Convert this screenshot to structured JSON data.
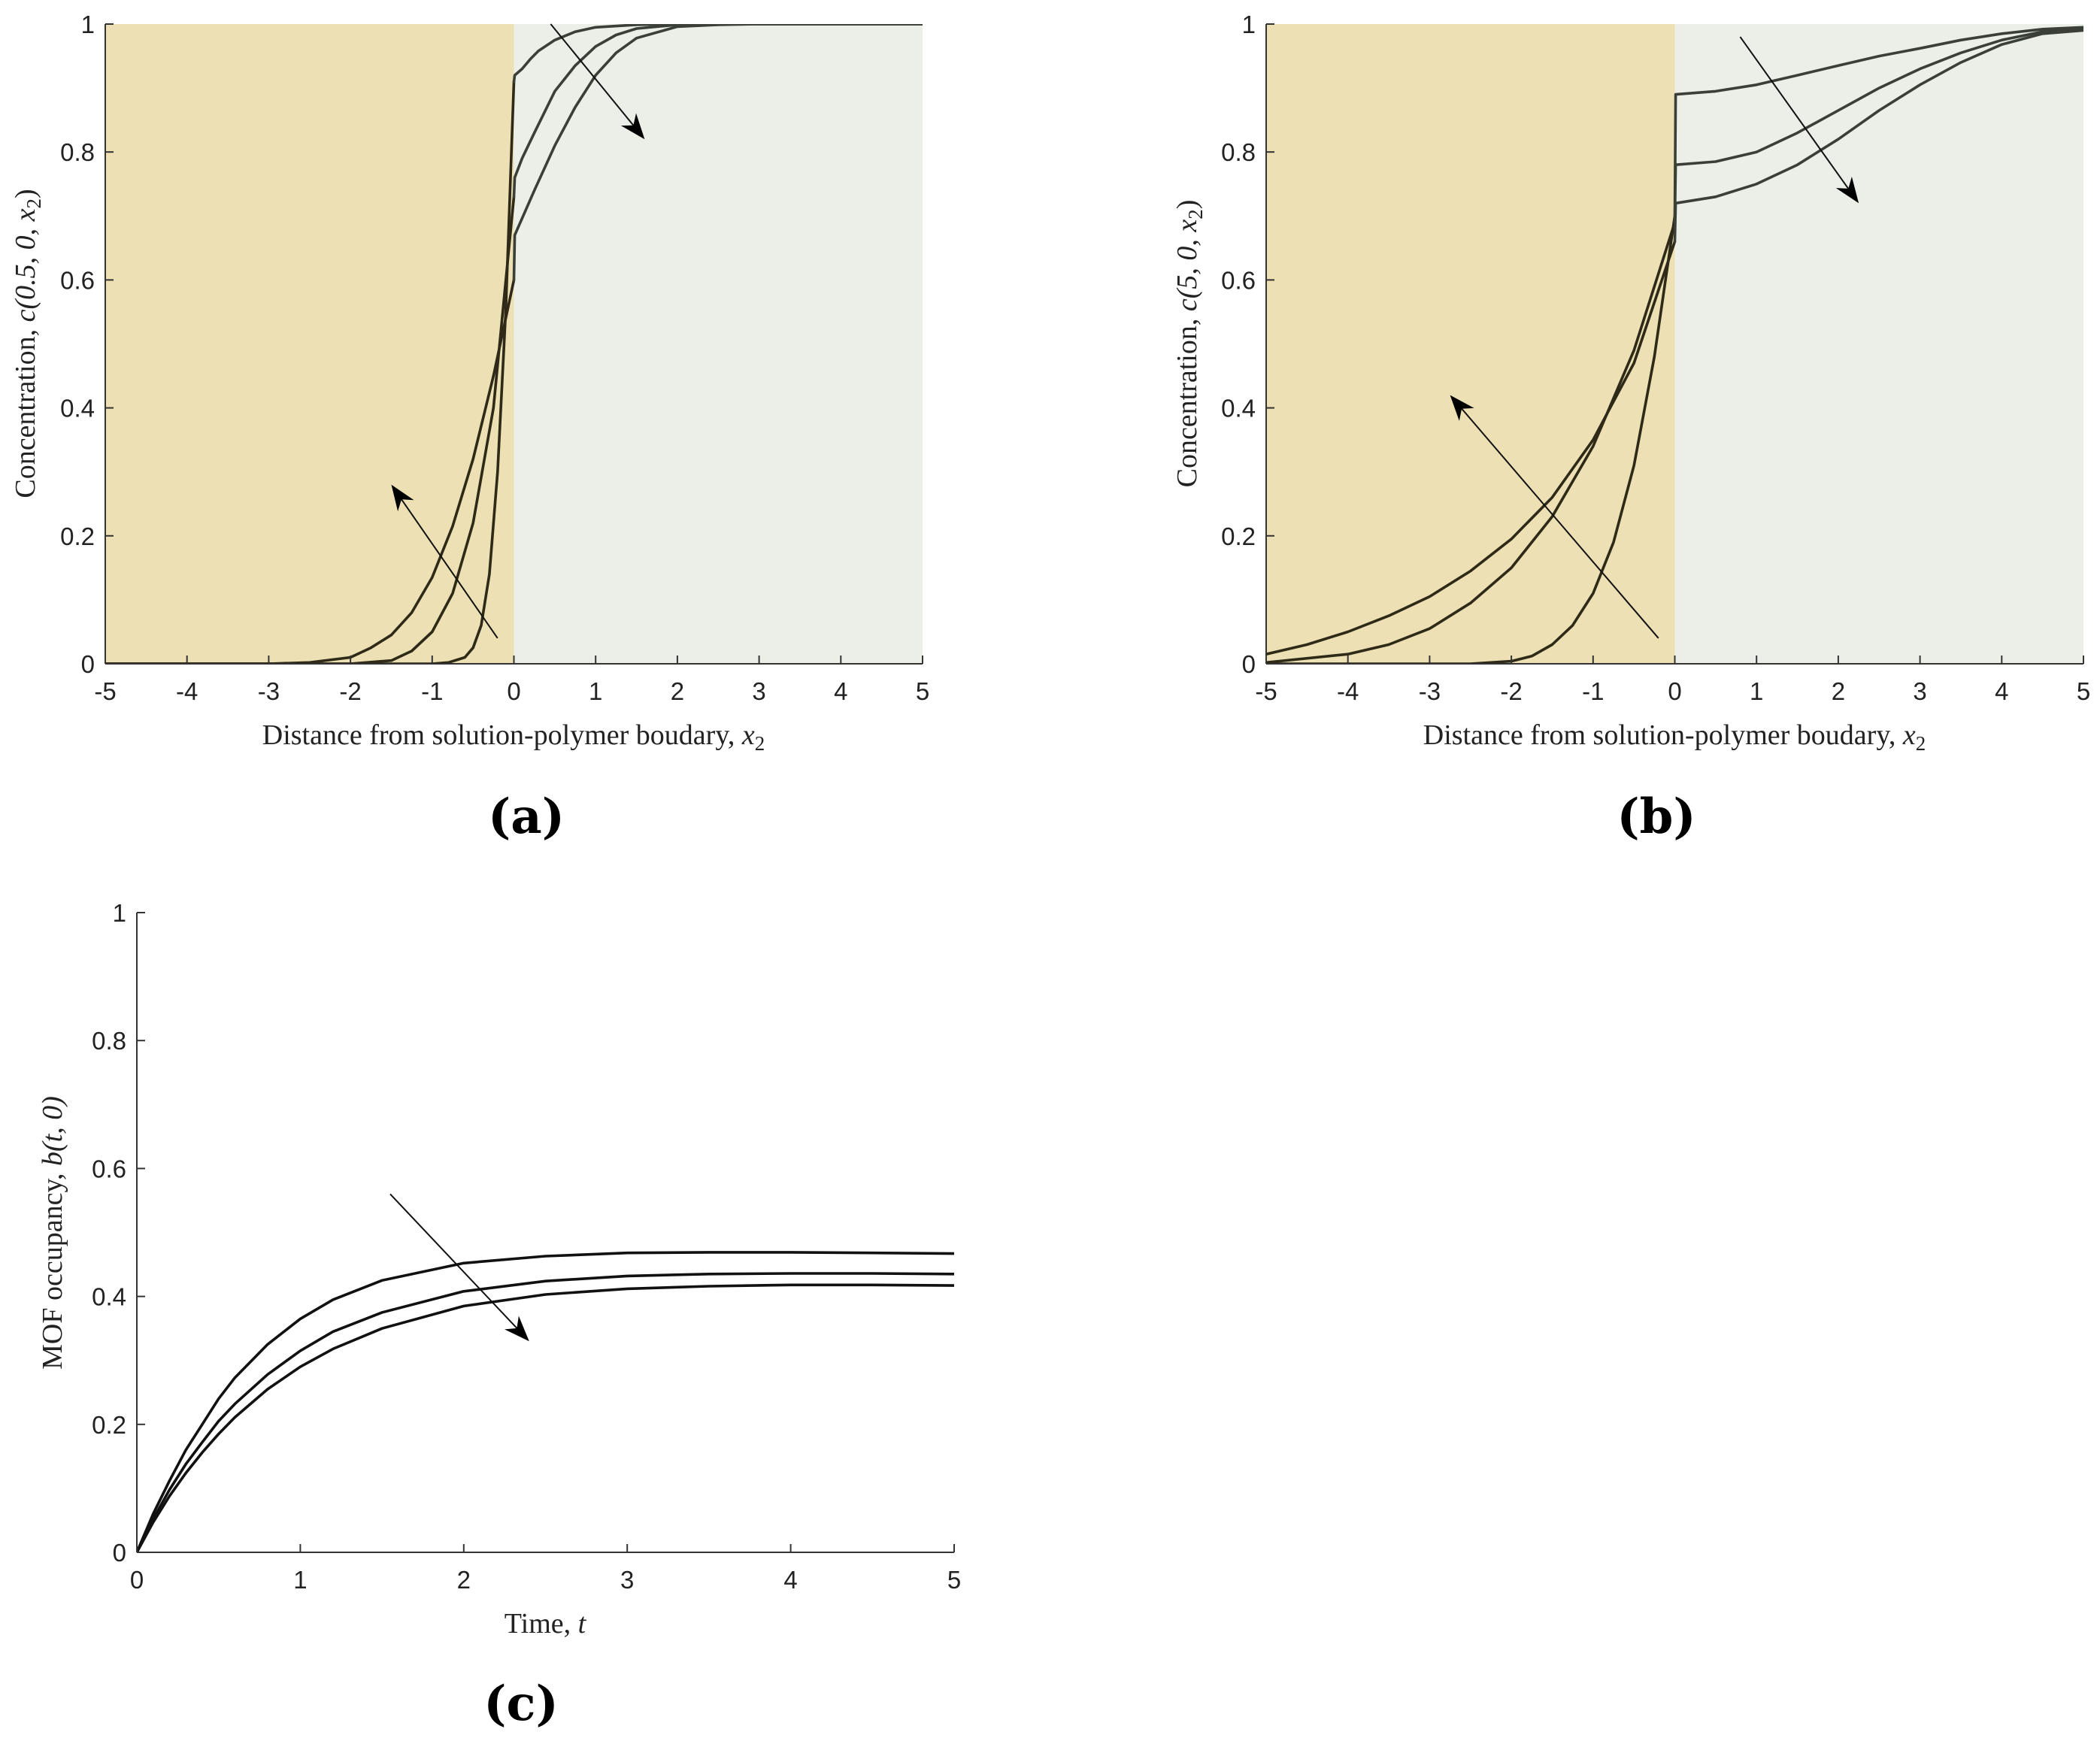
{
  "colors": {
    "polymer_region": "#ede0b4",
    "solution_region": "#ebefe7",
    "curve_polymer": "#2e2a17",
    "curve_solution": "#3a4038",
    "curve_time": "#111111"
  },
  "chart_data": [
    {
      "panel_label": "(a)",
      "type": "line",
      "xlabel_text": "Distance from solution-polymer boudary, ",
      "xlabel_var": "x",
      "xlabel_sub": "2",
      "ylabel_text": "Concentration, ",
      "ylabel_expr": "c(0.5, 0, x",
      "ylabel_sub": "2",
      "ylabel_close": ")",
      "xlim": [
        -5,
        5
      ],
      "ylim": [
        0,
        1
      ],
      "xticks": [
        "-5",
        "-4",
        "-3",
        "-2",
        "-1",
        "0",
        "1",
        "2",
        "3",
        "4",
        "5"
      ],
      "yticks": [
        "0",
        "0.2",
        "0.4",
        "0.6",
        "0.8",
        "1"
      ],
      "shaded_regions": [
        {
          "x": [
            -5,
            0
          ],
          "color": "polymer_region"
        },
        {
          "x": [
            0,
            5
          ],
          "color": "solution_region"
        }
      ],
      "series": [
        {
          "x": [
            -5,
            -1.5,
            -1,
            -0.8,
            -0.6,
            -0.5,
            -0.4,
            -0.3,
            -0.2,
            -0.1,
            0,
            0.01,
            0.1,
            0.2,
            0.3,
            0.5,
            0.75,
            1,
            1.5,
            2,
            5
          ],
          "y": [
            0,
            0,
            0,
            0.002,
            0.01,
            0.025,
            0.06,
            0.14,
            0.3,
            0.55,
            0.91,
            0.92,
            0.93,
            0.945,
            0.958,
            0.975,
            0.988,
            0.995,
            0.999,
            1,
            1
          ]
        },
        {
          "x": [
            -5,
            -2,
            -1.5,
            -1.25,
            -1,
            -0.75,
            -0.5,
            -0.25,
            0,
            0.01,
            0.1,
            0.25,
            0.5,
            0.75,
            1,
            1.25,
            1.5,
            2,
            2.5,
            5
          ],
          "y": [
            0,
            0,
            0.005,
            0.02,
            0.05,
            0.11,
            0.22,
            0.4,
            0.73,
            0.76,
            0.79,
            0.83,
            0.895,
            0.935,
            0.965,
            0.983,
            0.993,
            0.999,
            1,
            1
          ]
        },
        {
          "x": [
            -5,
            -3,
            -2.5,
            -2,
            -1.75,
            -1.5,
            -1.25,
            -1,
            -0.75,
            -0.5,
            -0.25,
            0,
            0.01,
            0.25,
            0.5,
            0.75,
            1,
            1.25,
            1.5,
            2,
            2.5,
            3,
            5
          ],
          "y": [
            0,
            0,
            0.002,
            0.01,
            0.025,
            0.045,
            0.08,
            0.135,
            0.215,
            0.32,
            0.45,
            0.6,
            0.67,
            0.74,
            0.81,
            0.87,
            0.92,
            0.955,
            0.978,
            0.996,
            0.999,
            1,
            1
          ]
        }
      ],
      "arrows": [
        {
          "from": [
            0.45,
            1.0
          ],
          "to": [
            1.6,
            0.82
          ]
        },
        {
          "from": [
            -0.2,
            0.04
          ],
          "to": [
            -1.5,
            0.28
          ]
        }
      ]
    },
    {
      "panel_label": "(b)",
      "type": "line",
      "xlabel_text": "Distance from solution-polymer boudary, ",
      "xlabel_var": "x",
      "xlabel_sub": "2",
      "ylabel_text": "Concentration, ",
      "ylabel_expr": "c(5, 0, x",
      "ylabel_sub": "2",
      "ylabel_close": ")",
      "xlim": [
        -5,
        5
      ],
      "ylim": [
        0,
        1
      ],
      "xticks": [
        "-5",
        "-4",
        "-3",
        "-2",
        "-1",
        "0",
        "1",
        "2",
        "3",
        "4",
        "5"
      ],
      "yticks": [
        "0",
        "0.2",
        "0.4",
        "0.6",
        "0.8",
        "1"
      ],
      "shaded_regions": [
        {
          "x": [
            -5,
            0
          ],
          "color": "polymer_region"
        },
        {
          "x": [
            0,
            5
          ],
          "color": "solution_region"
        }
      ],
      "series": [
        {
          "x": [
            -5,
            -2.5,
            -2,
            -1.75,
            -1.5,
            -1.25,
            -1,
            -0.75,
            -0.5,
            -0.25,
            0,
            0.01,
            0.5,
            1,
            1.5,
            2,
            2.5,
            3,
            3.5,
            4,
            4.5,
            5
          ],
          "y": [
            0,
            0,
            0.004,
            0.012,
            0.03,
            0.06,
            0.11,
            0.19,
            0.31,
            0.48,
            0.7,
            0.89,
            0.895,
            0.905,
            0.92,
            0.935,
            0.95,
            0.962,
            0.975,
            0.985,
            0.992,
            0.995
          ]
        },
        {
          "x": [
            -5,
            -4,
            -3.5,
            -3,
            -2.5,
            -2,
            -1.5,
            -1,
            -0.5,
            0,
            0.01,
            0.5,
            1,
            1.5,
            2,
            2.5,
            3,
            3.5,
            4,
            4.5,
            5
          ],
          "y": [
            0.002,
            0.015,
            0.03,
            0.055,
            0.095,
            0.15,
            0.23,
            0.34,
            0.49,
            0.69,
            0.78,
            0.785,
            0.8,
            0.83,
            0.865,
            0.9,
            0.93,
            0.955,
            0.975,
            0.988,
            0.993
          ]
        },
        {
          "x": [
            -5,
            -4.5,
            -4,
            -3.5,
            -3,
            -2.5,
            -2,
            -1.5,
            -1,
            -0.5,
            0,
            0.01,
            0.5,
            1,
            1.5,
            2,
            2.5,
            3,
            3.5,
            4,
            4.5,
            5
          ],
          "y": [
            0.015,
            0.03,
            0.05,
            0.075,
            0.105,
            0.145,
            0.195,
            0.26,
            0.35,
            0.47,
            0.66,
            0.72,
            0.73,
            0.75,
            0.78,
            0.82,
            0.865,
            0.905,
            0.94,
            0.968,
            0.985,
            0.99
          ]
        }
      ],
      "arrows": [
        {
          "from": [
            0.8,
            0.98
          ],
          "to": [
            2.25,
            0.72
          ]
        },
        {
          "from": [
            -0.2,
            0.04
          ],
          "to": [
            -2.75,
            0.42
          ]
        }
      ]
    },
    {
      "panel_label": "(c)",
      "type": "line",
      "xlabel_text": "Time, ",
      "xlabel_var": "t",
      "ylabel_text": "MOF occupancy, ",
      "ylabel_expr": "b(t, 0)",
      "xlim": [
        0,
        5
      ],
      "ylim": [
        0,
        1
      ],
      "xticks": [
        "0",
        "1",
        "2",
        "3",
        "4",
        "5"
      ],
      "yticks": [
        "0",
        "0.2",
        "0.4",
        "0.6",
        "0.8",
        "1"
      ],
      "series": [
        {
          "x": [
            0,
            0.1,
            0.2,
            0.3,
            0.4,
            0.5,
            0.6,
            0.8,
            1,
            1.2,
            1.5,
            2,
            2.5,
            3,
            3.5,
            4,
            4.5,
            5
          ],
          "y": [
            0,
            0.06,
            0.112,
            0.16,
            0.2,
            0.24,
            0.273,
            0.325,
            0.365,
            0.395,
            0.425,
            0.452,
            0.463,
            0.468,
            0.469,
            0.469,
            0.468,
            0.467
          ]
        },
        {
          "x": [
            0,
            0.1,
            0.2,
            0.3,
            0.4,
            0.5,
            0.6,
            0.8,
            1,
            1.2,
            1.5,
            2,
            2.5,
            3,
            3.5,
            4,
            4.5,
            5
          ],
          "y": [
            0,
            0.052,
            0.098,
            0.138,
            0.172,
            0.205,
            0.232,
            0.278,
            0.315,
            0.345,
            0.375,
            0.408,
            0.424,
            0.432,
            0.435,
            0.436,
            0.436,
            0.435
          ]
        },
        {
          "x": [
            0,
            0.1,
            0.2,
            0.3,
            0.4,
            0.5,
            0.6,
            0.8,
            1,
            1.2,
            1.5,
            2,
            2.5,
            3,
            3.5,
            4,
            4.5,
            5
          ],
          "y": [
            0,
            0.047,
            0.088,
            0.124,
            0.156,
            0.185,
            0.211,
            0.255,
            0.29,
            0.318,
            0.35,
            0.385,
            0.403,
            0.412,
            0.416,
            0.418,
            0.418,
            0.417
          ]
        }
      ],
      "arrows": [
        {
          "from": [
            1.55,
            0.56
          ],
          "to": [
            2.4,
            0.33
          ]
        }
      ]
    }
  ]
}
